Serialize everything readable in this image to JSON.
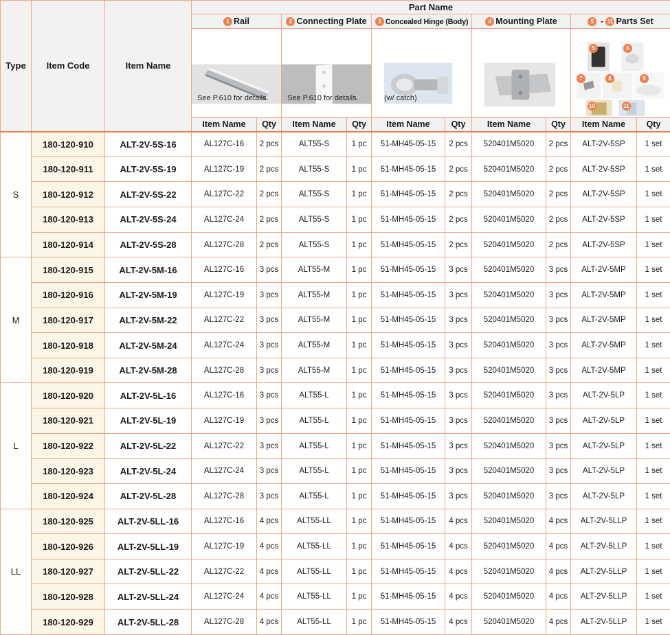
{
  "headers": {
    "type": "Type",
    "item_code": "Item Code",
    "item_name": "Item Name",
    "part_name": "Part Name",
    "parts": [
      {
        "num": "1",
        "label": "Rail"
      },
      {
        "num": "2",
        "label": "Connecting Plate"
      },
      {
        "num": "3",
        "label": "Concealed Hinge (Body)"
      },
      {
        "num": "4",
        "label": "Mounting Plate"
      }
    ],
    "parts_set": {
      "from": "5",
      "dash": "-",
      "to": "11",
      "label": "Parts Set"
    },
    "sub_item_name": "Item Name",
    "sub_qty": "Qty",
    "captions": {
      "rail": "See P.610 for details.",
      "plate": "See P.610 for details.",
      "hinge": "(w/ catch)"
    },
    "set_nums": [
      "5",
      "6",
      "7",
      "8",
      "9",
      "10",
      "11"
    ]
  },
  "groups": [
    {
      "type": "S",
      "rows": [
        {
          "code": "180-120-910",
          "name": "ALT-2V-5S-16",
          "rail": "AL127C-16",
          "rail_qty": "2 pcs",
          "plate": "ALT55-S",
          "plate_qty": "1 pc",
          "hinge": "51-MH45-05-15",
          "hinge_qty": "2 pcs",
          "mount": "520401M5020",
          "mount_qty": "2 pcs",
          "set": "ALT-2V-5SP",
          "set_qty": "1 set"
        },
        {
          "code": "180-120-911",
          "name": "ALT-2V-5S-19",
          "rail": "AL127C-19",
          "rail_qty": "2 pcs",
          "plate": "ALT55-S",
          "plate_qty": "1 pc",
          "hinge": "51-MH45-05-15",
          "hinge_qty": "2 pcs",
          "mount": "520401M5020",
          "mount_qty": "2 pcs",
          "set": "ALT-2V-5SP",
          "set_qty": "1 set"
        },
        {
          "code": "180-120-912",
          "name": "ALT-2V-5S-22",
          "rail": "AL127C-22",
          "rail_qty": "2 pcs",
          "plate": "ALT55-S",
          "plate_qty": "1 pc",
          "hinge": "51-MH45-05-15",
          "hinge_qty": "2 pcs",
          "mount": "520401M5020",
          "mount_qty": "2 pcs",
          "set": "ALT-2V-5SP",
          "set_qty": "1 set"
        },
        {
          "code": "180-120-913",
          "name": "ALT-2V-5S-24",
          "rail": "AL127C-24",
          "rail_qty": "2 pcs",
          "plate": "ALT55-S",
          "plate_qty": "1 pc",
          "hinge": "51-MH45-05-15",
          "hinge_qty": "2 pcs",
          "mount": "520401M5020",
          "mount_qty": "2 pcs",
          "set": "ALT-2V-5SP",
          "set_qty": "1 set"
        },
        {
          "code": "180-120-914",
          "name": "ALT-2V-5S-28",
          "rail": "AL127C-28",
          "rail_qty": "2 pcs",
          "plate": "ALT55-S",
          "plate_qty": "1 pc",
          "hinge": "51-MH45-05-15",
          "hinge_qty": "2 pcs",
          "mount": "520401M5020",
          "mount_qty": "2 pcs",
          "set": "ALT-2V-5SP",
          "set_qty": "1 set"
        }
      ]
    },
    {
      "type": "M",
      "rows": [
        {
          "code": "180-120-915",
          "name": "ALT-2V-5M-16",
          "rail": "AL127C-16",
          "rail_qty": "3 pcs",
          "plate": "ALT55-M",
          "plate_qty": "1 pc",
          "hinge": "51-MH45-05-15",
          "hinge_qty": "3 pcs",
          "mount": "520401M5020",
          "mount_qty": "3 pcs",
          "set": "ALT-2V-5MP",
          "set_qty": "1 set"
        },
        {
          "code": "180-120-916",
          "name": "ALT-2V-5M-19",
          "rail": "AL127C-19",
          "rail_qty": "3 pcs",
          "plate": "ALT55-M",
          "plate_qty": "1 pc",
          "hinge": "51-MH45-05-15",
          "hinge_qty": "3 pcs",
          "mount": "520401M5020",
          "mount_qty": "3 pcs",
          "set": "ALT-2V-5MP",
          "set_qty": "1 set"
        },
        {
          "code": "180-120-917",
          "name": "ALT-2V-5M-22",
          "rail": "AL127C-22",
          "rail_qty": "3 pcs",
          "plate": "ALT55-M",
          "plate_qty": "1 pc",
          "hinge": "51-MH45-05-15",
          "hinge_qty": "3 pcs",
          "mount": "520401M5020",
          "mount_qty": "3 pcs",
          "set": "ALT-2V-5MP",
          "set_qty": "1 set"
        },
        {
          "code": "180-120-918",
          "name": "ALT-2V-5M-24",
          "rail": "AL127C-24",
          "rail_qty": "3 pcs",
          "plate": "ALT55-M",
          "plate_qty": "1 pc",
          "hinge": "51-MH45-05-15",
          "hinge_qty": "3 pcs",
          "mount": "520401M5020",
          "mount_qty": "3 pcs",
          "set": "ALT-2V-5MP",
          "set_qty": "1 set"
        },
        {
          "code": "180-120-919",
          "name": "ALT-2V-5M-28",
          "rail": "AL127C-28",
          "rail_qty": "3 pcs",
          "plate": "ALT55-M",
          "plate_qty": "1 pc",
          "hinge": "51-MH45-05-15",
          "hinge_qty": "3 pcs",
          "mount": "520401M5020",
          "mount_qty": "3 pcs",
          "set": "ALT-2V-5MP",
          "set_qty": "1 set"
        }
      ]
    },
    {
      "type": "L",
      "rows": [
        {
          "code": "180-120-920",
          "name": "ALT-2V-5L-16",
          "rail": "AL127C-16",
          "rail_qty": "3 pcs",
          "plate": "ALT55-L",
          "plate_qty": "1 pc",
          "hinge": "51-MH45-05-15",
          "hinge_qty": "3 pcs",
          "mount": "520401M5020",
          "mount_qty": "3 pcs",
          "set": "ALT-2V-5LP",
          "set_qty": "1 set"
        },
        {
          "code": "180-120-921",
          "name": "ALT-2V-5L-19",
          "rail": "AL127C-19",
          "rail_qty": "3 pcs",
          "plate": "ALT55-L",
          "plate_qty": "1 pc",
          "hinge": "51-MH45-05-15",
          "hinge_qty": "3 pcs",
          "mount": "520401M5020",
          "mount_qty": "3 pcs",
          "set": "ALT-2V-5LP",
          "set_qty": "1 set"
        },
        {
          "code": "180-120-922",
          "name": "ALT-2V-5L-22",
          "rail": "AL127C-22",
          "rail_qty": "3 pcs",
          "plate": "ALT55-L",
          "plate_qty": "1 pc",
          "hinge": "51-MH45-05-15",
          "hinge_qty": "3 pcs",
          "mount": "520401M5020",
          "mount_qty": "3 pcs",
          "set": "ALT-2V-5LP",
          "set_qty": "1 set"
        },
        {
          "code": "180-120-923",
          "name": "ALT-2V-5L-24",
          "rail": "AL127C-24",
          "rail_qty": "3 pcs",
          "plate": "ALT55-L",
          "plate_qty": "1 pc",
          "hinge": "51-MH45-05-15",
          "hinge_qty": "3 pcs",
          "mount": "520401M5020",
          "mount_qty": "3 pcs",
          "set": "ALT-2V-5LP",
          "set_qty": "1 set"
        },
        {
          "code": "180-120-924",
          "name": "ALT-2V-5L-28",
          "rail": "AL127C-28",
          "rail_qty": "3 pcs",
          "plate": "ALT55-L",
          "plate_qty": "1 pc",
          "hinge": "51-MH45-05-15",
          "hinge_qty": "3 pcs",
          "mount": "520401M5020",
          "mount_qty": "3 pcs",
          "set": "ALT-2V-5LP",
          "set_qty": "1 set"
        }
      ]
    },
    {
      "type": "LL",
      "rows": [
        {
          "code": "180-120-925",
          "name": "ALT-2V-5LL-16",
          "rail": "AL127C-16",
          "rail_qty": "4 pcs",
          "plate": "ALT55-LL",
          "plate_qty": "1 pc",
          "hinge": "51-MH45-05-15",
          "hinge_qty": "4 pcs",
          "mount": "520401M5020",
          "mount_qty": "4 pcs",
          "set": "ALT-2V-5LLP",
          "set_qty": "1 set"
        },
        {
          "code": "180-120-926",
          "name": "ALT-2V-5LL-19",
          "rail": "AL127C-19",
          "rail_qty": "4 pcs",
          "plate": "ALT55-LL",
          "plate_qty": "1 pc",
          "hinge": "51-MH45-05-15",
          "hinge_qty": "4 pcs",
          "mount": "520401M5020",
          "mount_qty": "4 pcs",
          "set": "ALT-2V-5LLP",
          "set_qty": "1 set"
        },
        {
          "code": "180-120-927",
          "name": "ALT-2V-5LL-22",
          "rail": "AL127C-22",
          "rail_qty": "4 pcs",
          "plate": "ALT55-LL",
          "plate_qty": "1 pc",
          "hinge": "51-MH45-05-15",
          "hinge_qty": "4 pcs",
          "mount": "520401M5020",
          "mount_qty": "4 pcs",
          "set": "ALT-2V-5LLP",
          "set_qty": "1 set"
        },
        {
          "code": "180-120-928",
          "name": "ALT-2V-5LL-24",
          "rail": "AL127C-24",
          "rail_qty": "4 pcs",
          "plate": "ALT55-LL",
          "plate_qty": "1 pc",
          "hinge": "51-MH45-05-15",
          "hinge_qty": "4 pcs",
          "mount": "520401M5020",
          "mount_qty": "4 pcs",
          "set": "ALT-2V-5LLP",
          "set_qty": "1 set"
        },
        {
          "code": "180-120-929",
          "name": "ALT-2V-5LL-28",
          "rail": "AL127C-28",
          "rail_qty": "4 pcs",
          "plate": "ALT55-LL",
          "plate_qty": "1 pc",
          "hinge": "51-MH45-05-15",
          "hinge_qty": "4 pcs",
          "mount": "520401M5020",
          "mount_qty": "4 pcs",
          "set": "ALT-2V-5LLP",
          "set_qty": "1 set"
        }
      ]
    }
  ],
  "colors": {
    "border": "#f0a585",
    "accent": "#f07f4e",
    "header_bg": "#f2f2f2",
    "code_bg": "#fdf6e6"
  }
}
